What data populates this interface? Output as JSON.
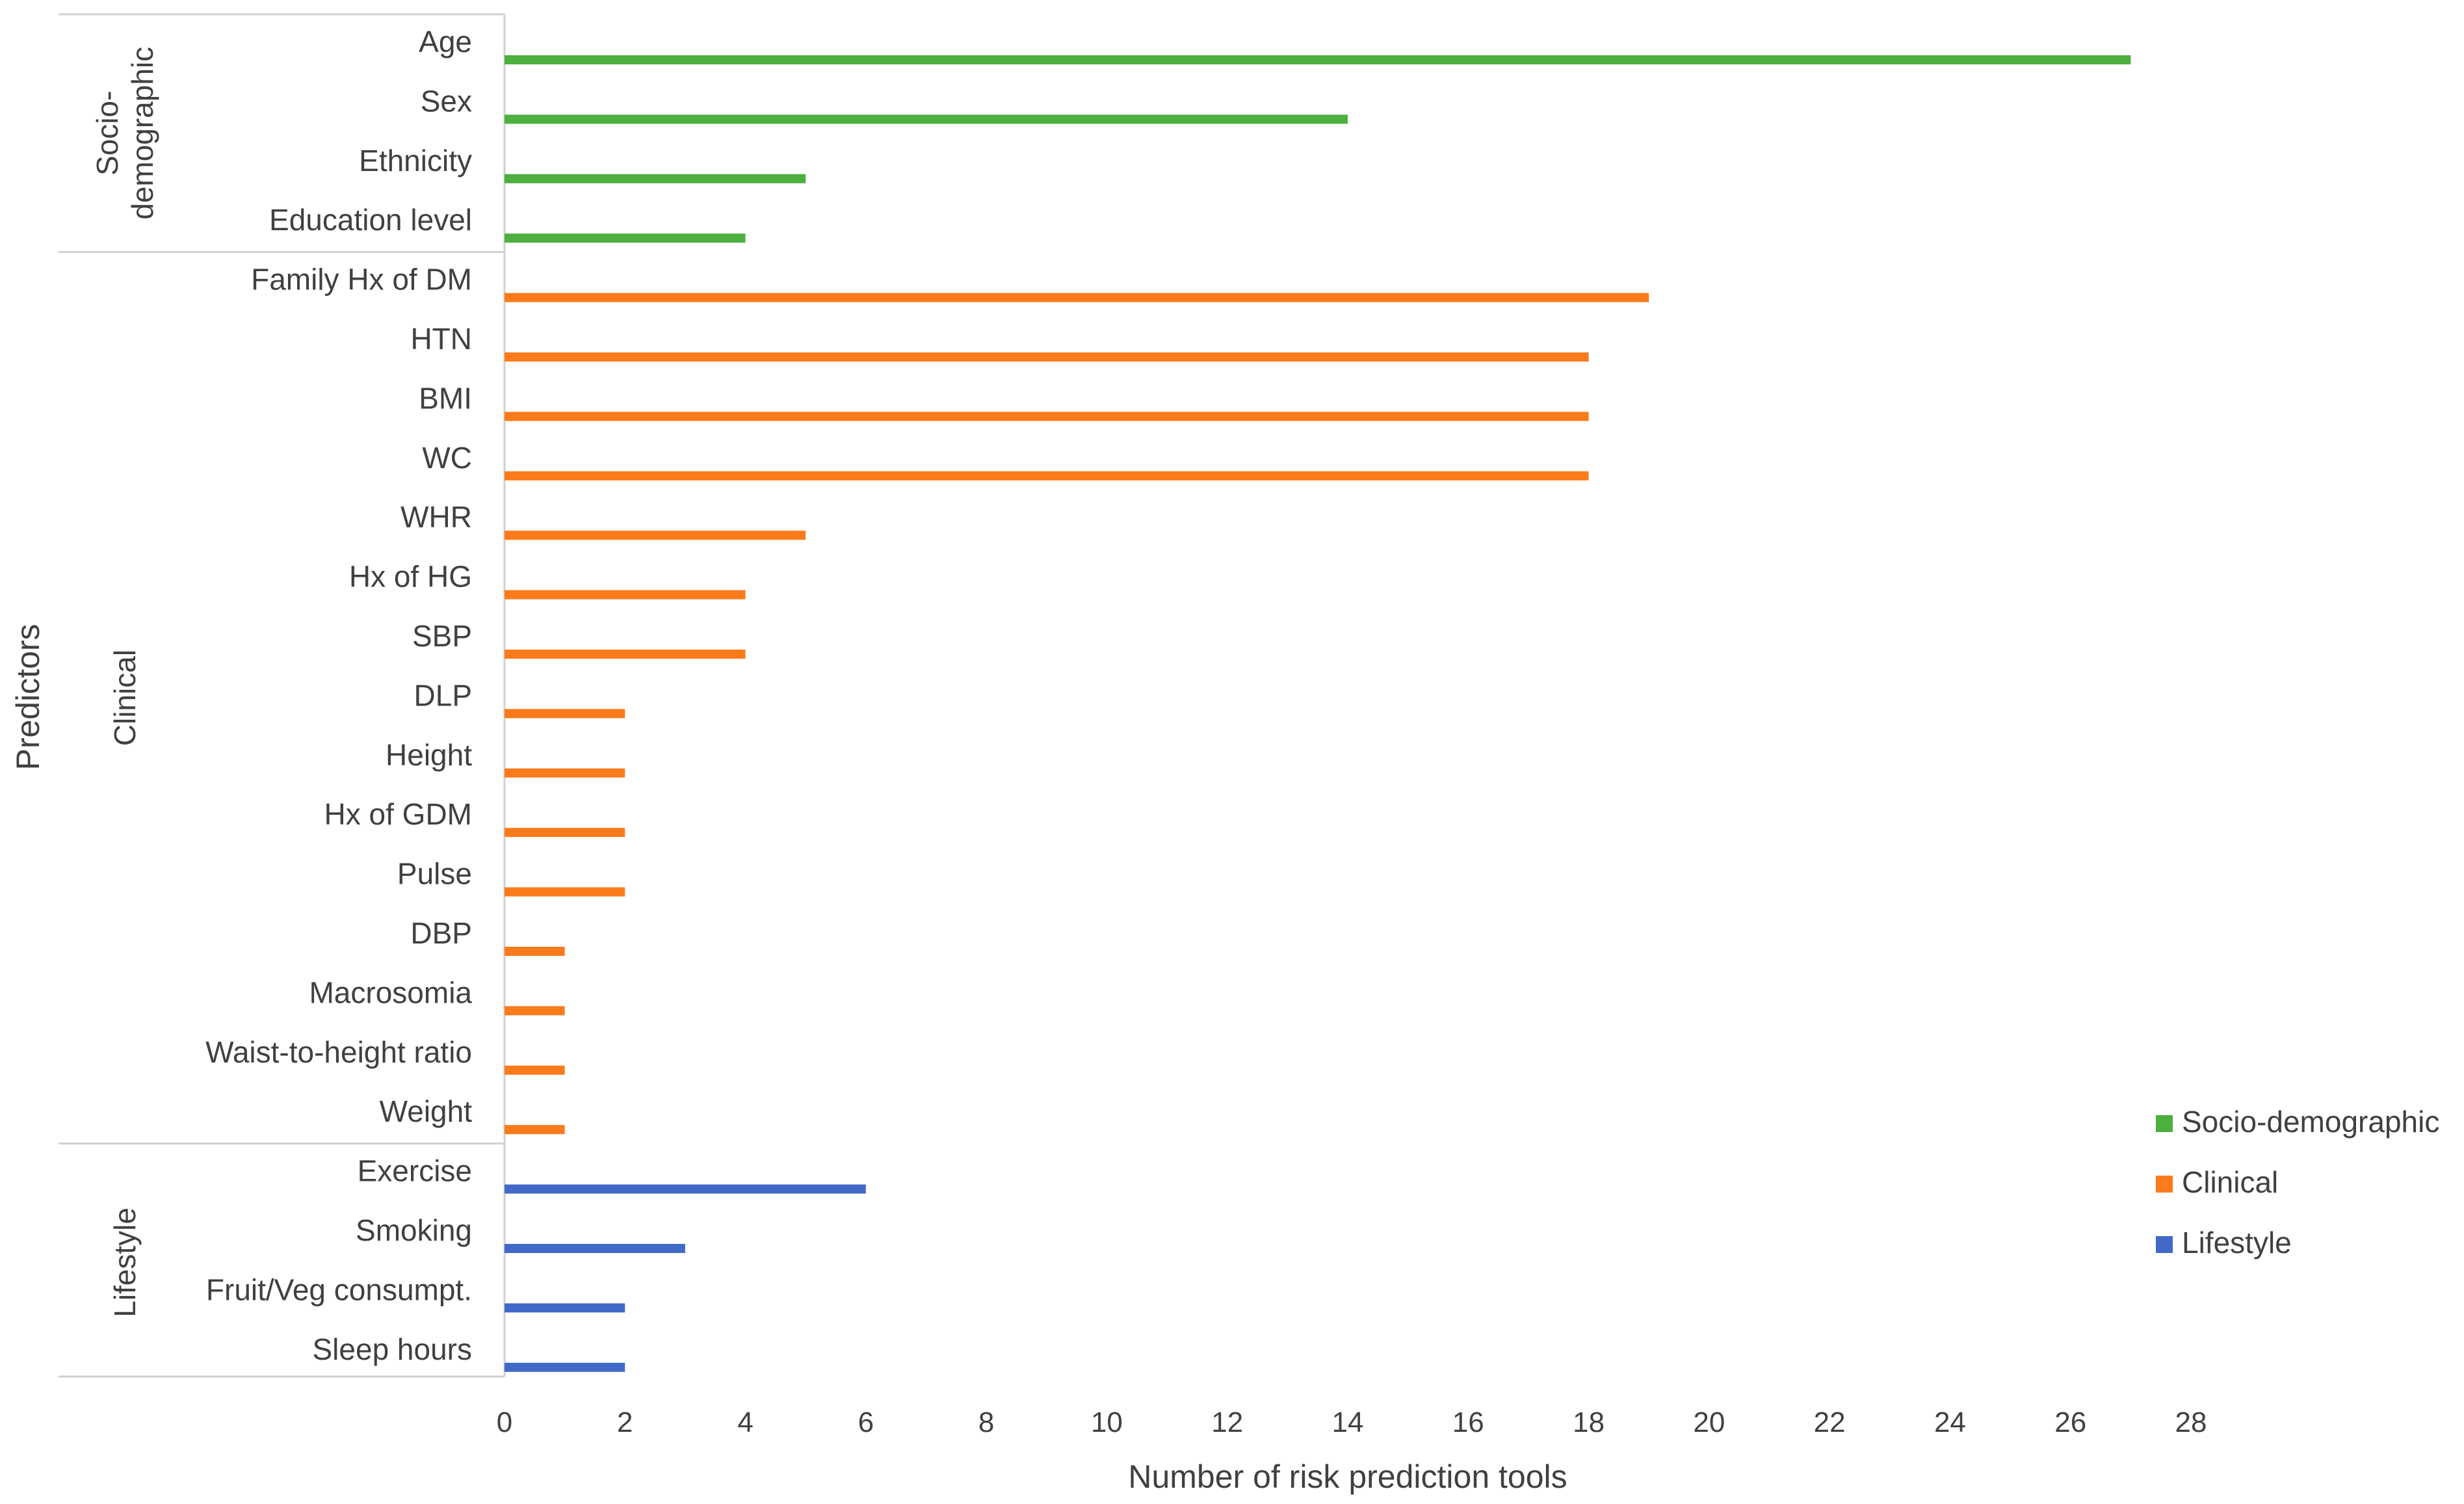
{
  "chart_data": {
    "type": "bar",
    "orientation": "horizontal",
    "xlabel": "Number of risk prediction tools",
    "ylabel": "Predictors",
    "xlim": [
      0,
      28
    ],
    "xticks": [
      "0",
      "2",
      "4",
      "6",
      "8",
      "10",
      "12",
      "14",
      "16",
      "18",
      "20",
      "22",
      "24",
      "26",
      "28"
    ],
    "grid": false,
    "legend_position": "right",
    "groups": [
      {
        "name": "Socio-demographic",
        "label_lines": [
          "Socio-",
          "demographic"
        ],
        "color": "#4caf3f",
        "categories": [
          "Age",
          "Sex",
          "Ethnicity",
          "Education level"
        ],
        "values": [
          27,
          14,
          5,
          4
        ]
      },
      {
        "name": "Clinical",
        "label_lines": [
          "Clinical"
        ],
        "color": "#fb7a1b",
        "categories": [
          "Family Hx of DM",
          "HTN",
          "BMI",
          "WC",
          "WHR",
          "Hx of HG",
          "SBP",
          "DLP",
          "Height",
          "Hx of GDM",
          "Pulse",
          "DBP",
          "Macrosomia",
          "Waist-to-height ratio",
          "Weight"
        ],
        "values": [
          19,
          18,
          18,
          18,
          5,
          4,
          4,
          2,
          2,
          2,
          2,
          1,
          1,
          1,
          1
        ]
      },
      {
        "name": "Lifestyle",
        "label_lines": [
          "Lifestyle"
        ],
        "color": "#4169c8",
        "categories": [
          "Exercise",
          "Smoking",
          "Fruit/Veg consumpt.",
          "Sleep hours"
        ],
        "values": [
          6,
          3,
          2,
          2
        ]
      }
    ],
    "legend": [
      "Socio-demographic",
      "Clinical",
      "Lifestyle"
    ]
  }
}
